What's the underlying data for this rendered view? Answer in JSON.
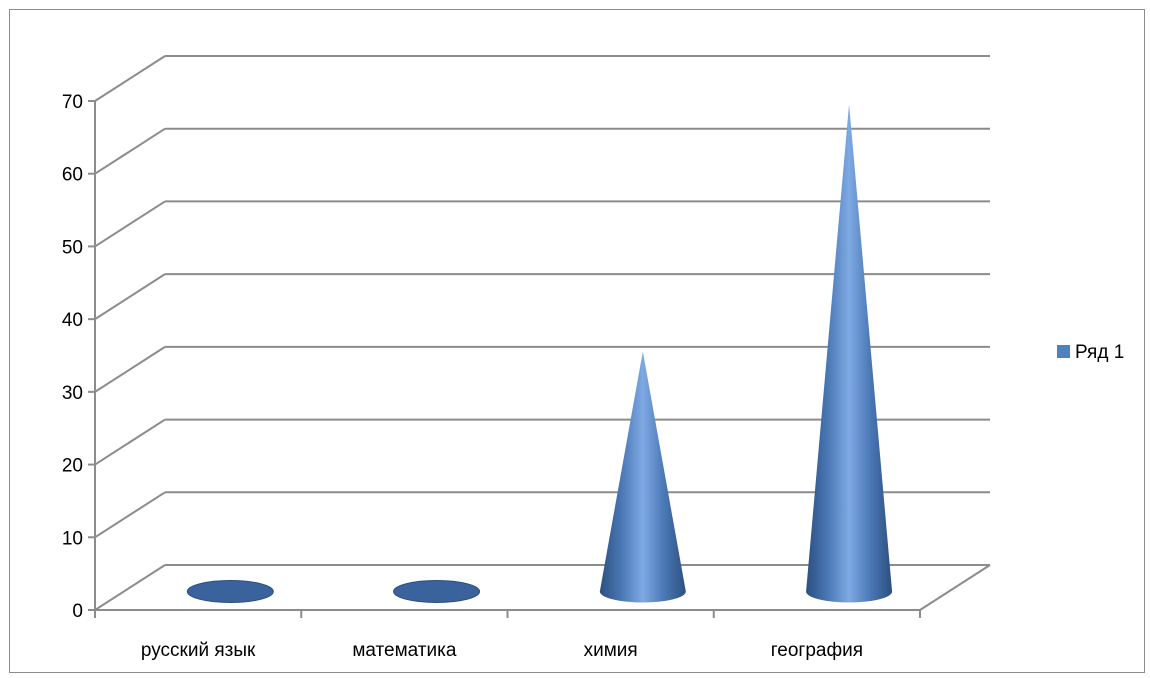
{
  "chart_data": {
    "type": "bar",
    "shape": "cone-3d",
    "categories": [
      "русский язык",
      "математика",
      "химия",
      "география"
    ],
    "series": [
      {
        "name": "Ряд 1",
        "values": [
          0,
          0,
          33,
          67
        ],
        "color": "#4f81bd"
      }
    ],
    "y_ticks": [
      "0",
      "10",
      "20",
      "30",
      "40",
      "50",
      "60",
      "70"
    ],
    "ylim": [
      0,
      70
    ],
    "grid": true,
    "legend_position": "right",
    "title": "",
    "xlabel": "",
    "ylabel": ""
  }
}
